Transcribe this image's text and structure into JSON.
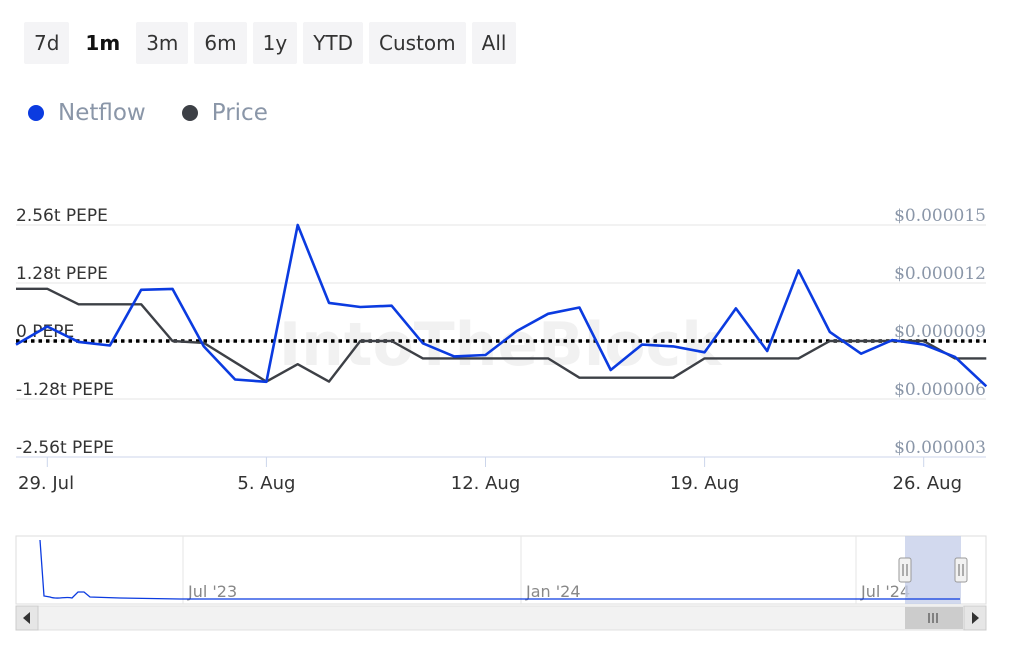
{
  "range_selector": {
    "buttons": [
      "7d",
      "1m",
      "3m",
      "6m",
      "1y",
      "YTD",
      "Custom",
      "All"
    ],
    "active": "1m"
  },
  "legend": [
    {
      "name": "Netflow",
      "color": "#0b3be0"
    },
    {
      "name": "Price",
      "color": "#3d4046"
    }
  ],
  "watermark": "IntoTheBlock",
  "chart_data": {
    "type": "line",
    "x_ticks": [
      "29. Jul",
      "5. Aug",
      "12. Aug",
      "19. Aug",
      "26. Aug"
    ],
    "y_left_ticks": [
      "2.56t PEPE",
      "1.28t PEPE",
      "0 PEPE",
      "-1.28t PEPE",
      "-2.56t PEPE"
    ],
    "y_left_range": [
      -2.56,
      2.56
    ],
    "y_left_unit": "t PEPE",
    "y_right_ticks": [
      "$0.000015",
      "$0.000012",
      "$0.000009",
      "$0.000006",
      "$0.000003"
    ],
    "y_right_range": [
      3e-06,
      1.5e-05
    ],
    "zero_line": {
      "value": 0,
      "style": "dotted"
    },
    "x_start": "2024-07-28",
    "series": [
      {
        "name": "Netflow",
        "axis": "left",
        "color": "#0b3be0",
        "values": [
          -0.08,
          0.32,
          -0.02,
          -0.1,
          1.13,
          1.15,
          -0.12,
          -0.85,
          -0.9,
          2.56,
          0.84,
          0.75,
          0.78,
          -0.05,
          -0.34,
          -0.31,
          0.22,
          0.6,
          0.74,
          -0.64,
          -0.08,
          -0.12,
          -0.25,
          0.72,
          -0.22,
          1.56,
          0.2,
          -0.28,
          0.02,
          -0.08,
          -0.35,
          -1.0
        ]
      },
      {
        "name": "Price",
        "axis": "right",
        "color": "#3d4046",
        "values": [
          1.17e-05,
          1.17e-05,
          1.09e-05,
          1.09e-05,
          1.09e-05,
          9e-06,
          8.9e-06,
          7.9e-06,
          6.9e-06,
          7.8e-06,
          6.9e-06,
          9e-06,
          9e-06,
          8.1e-06,
          8.1e-06,
          8.1e-06,
          8.1e-06,
          8.1e-06,
          7.1e-06,
          7.1e-06,
          7.1e-06,
          7.1e-06,
          8.1e-06,
          8.1e-06,
          8.1e-06,
          8.1e-06,
          9e-06,
          9e-06,
          9e-06,
          9e-06,
          8.1e-06,
          8.1e-06
        ]
      }
    ],
    "navigator": {
      "x_ticks": [
        "Jul '23",
        "Jan '24",
        "Jul '24"
      ]
    }
  }
}
